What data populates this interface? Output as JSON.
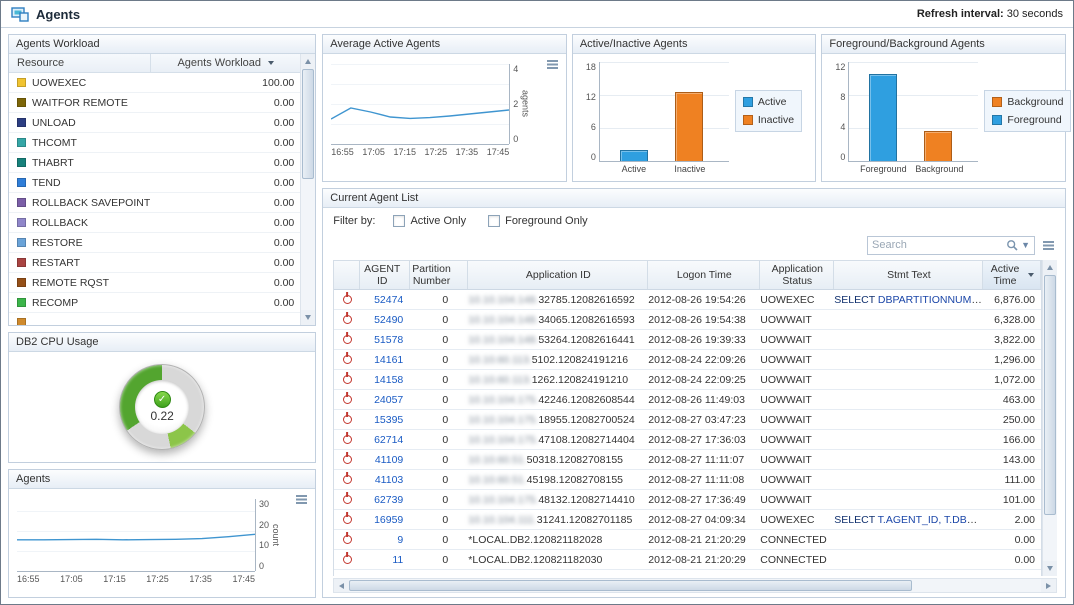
{
  "titlebar": {
    "title": "Agents",
    "refresh_label": "Refresh interval:",
    "refresh_value": "30 seconds"
  },
  "panels": {
    "workload": {
      "title": "Agents Workload",
      "columns": {
        "resource": "Resource",
        "workload": "Agents Workload"
      },
      "rows": [
        {
          "label": "UOWEXEC",
          "color": "#f0c330",
          "value": "100.00",
          "bar_color": "#3d9bd6"
        },
        {
          "label": "WAITFOR REMOTE",
          "color": "#7d6608",
          "value": "0.00",
          "bar_color": "#c4c4c4"
        },
        {
          "label": "UNLOAD",
          "color": "#2c3e82",
          "value": "0.00",
          "bar_color": "#c4c4c4"
        },
        {
          "label": "THCOMT",
          "color": "#35a6a6",
          "value": "0.00",
          "bar_color": "#c4c4c4"
        },
        {
          "label": "THABRT",
          "color": "#17817b",
          "value": "0.00",
          "bar_color": "#c4c4c4"
        },
        {
          "label": "TEND",
          "color": "#2f7ed8",
          "value": "0.00",
          "bar_color": "#c4c4c4"
        },
        {
          "label": "ROLLBACK SAVEPOINT",
          "color": "#7b5ea7",
          "value": "0.00",
          "bar_color": "#c4c4c4"
        },
        {
          "label": "ROLLBACK",
          "color": "#8f86c9",
          "value": "0.00",
          "bar_color": "#c4c4c4"
        },
        {
          "label": "RESTORE",
          "color": "#6aa3d8",
          "value": "0.00",
          "bar_color": "#c4c4c4"
        },
        {
          "label": "RESTART",
          "color": "#a94442",
          "value": "0.00",
          "bar_color": "#c4c4c4"
        },
        {
          "label": "REMOTE RQST",
          "color": "#955018",
          "value": "0.00",
          "bar_color": "#c4c4c4"
        },
        {
          "label": "RECOMP",
          "color": "#3cb54a",
          "value": "0.00",
          "bar_color": "#c4c4c4"
        },
        {
          "label": "",
          "color": "#cf8a2d",
          "value": "",
          "bar_color": "#c4c4c4"
        }
      ]
    },
    "cpu": {
      "title": "DB2 CPU Usage",
      "value": "0.22",
      "status_color": "#4ea72e"
    },
    "agents_trend": {
      "title": "Agents"
    },
    "avg_active": {
      "title": "Average Active Agents"
    },
    "active_inactive": {
      "title": "Active/Inactive Agents"
    },
    "fg_bg": {
      "title": "Foreground/Background Agents"
    },
    "agent_list": {
      "title": "Current Agent List",
      "filter_label": "Filter by:",
      "filters": [
        {
          "label": "Active Only"
        },
        {
          "label": "Foreground Only"
        }
      ],
      "search_placeholder": "Search",
      "columns": [
        "AGENT ID",
        "Partition Number",
        "Application ID",
        "Logon Time",
        "Application Status",
        "Stmt Text",
        "Active Time"
      ],
      "rows": [
        {
          "agent_id": "52474",
          "partition": "0",
          "app_blur": "10.10.104.148.",
          "app_id": "32785.12082616592",
          "logon": "2012-08-26 19:54:26",
          "status": "UOWEXEC",
          "stmt_kw": "SELECT",
          "stmt_rest": " DBPARTITIONNUM, (TOTAL_L…",
          "active_time": "6,876.00"
        },
        {
          "agent_id": "52490",
          "partition": "0",
          "app_blur": "10.10.104.148.",
          "app_id": "34065.12082616593",
          "logon": "2012-08-26 19:54:38",
          "status": "UOWWAIT",
          "stmt_kw": "",
          "stmt_rest": "",
          "active_time": "6,328.00"
        },
        {
          "agent_id": "51578",
          "partition": "0",
          "app_blur": "10.10.104.148.",
          "app_id": "53264.12082616441",
          "logon": "2012-08-26 19:39:33",
          "status": "UOWWAIT",
          "stmt_kw": "",
          "stmt_rest": "",
          "active_time": "3,822.00"
        },
        {
          "agent_id": "14161",
          "partition": "0",
          "app_blur": "10.10.60.113.",
          "app_id": "5102.120824191216",
          "logon": "2012-08-24 22:09:26",
          "status": "UOWWAIT",
          "stmt_kw": "",
          "stmt_rest": "",
          "active_time": "1,296.00"
        },
        {
          "agent_id": "14158",
          "partition": "0",
          "app_blur": "10.10.60.113.",
          "app_id": "1262.120824191210",
          "logon": "2012-08-24 22:09:25",
          "status": "UOWWAIT",
          "stmt_kw": "",
          "stmt_rest": "",
          "active_time": "1,072.00"
        },
        {
          "agent_id": "24057",
          "partition": "0",
          "app_blur": "10.10.104.175.",
          "app_id": "42246.12082608544",
          "logon": "2012-08-26 11:49:03",
          "status": "UOWWAIT",
          "stmt_kw": "",
          "stmt_rest": "",
          "active_time": "463.00"
        },
        {
          "agent_id": "15395",
          "partition": "0",
          "app_blur": "10.10.104.175.",
          "app_id": "18955.12082700524",
          "logon": "2012-08-27 03:47:23",
          "status": "UOWWAIT",
          "stmt_kw": "",
          "stmt_rest": "",
          "active_time": "250.00"
        },
        {
          "agent_id": "62714",
          "partition": "0",
          "app_blur": "10.10.104.175.",
          "app_id": "47108.12082714404",
          "logon": "2012-08-27 17:36:03",
          "status": "UOWWAIT",
          "stmt_kw": "",
          "stmt_rest": "",
          "active_time": "166.00"
        },
        {
          "agent_id": "41109",
          "partition": "0",
          "app_blur": "10.10.60.51.",
          "app_id": "50318.12082708155",
          "logon": "2012-08-27 11:11:07",
          "status": "UOWWAIT",
          "stmt_kw": "",
          "stmt_rest": "",
          "active_time": "143.00"
        },
        {
          "agent_id": "41103",
          "partition": "0",
          "app_blur": "10.10.60.51.",
          "app_id": "45198.12082708155",
          "logon": "2012-08-27 11:11:08",
          "status": "UOWWAIT",
          "stmt_kw": "",
          "stmt_rest": "",
          "active_time": "111.00"
        },
        {
          "agent_id": "62739",
          "partition": "0",
          "app_blur": "10.10.104.175.",
          "app_id": "48132.12082714410",
          "logon": "2012-08-27 17:36:49",
          "status": "UOWWAIT",
          "stmt_kw": "",
          "stmt_rest": "",
          "active_time": "101.00"
        },
        {
          "agent_id": "16959",
          "partition": "0",
          "app_blur": "10.10.104.111.",
          "app_id": "31241.12082701185",
          "logon": "2012-08-27 04:09:34",
          "status": "UOWEXEC",
          "stmt_kw": "SELECT",
          "stmt_rest": " T.AGENT_ID, T.DBPARTITION…",
          "active_time": "2.00"
        },
        {
          "agent_id": "9",
          "partition": "0",
          "app_blur": "",
          "app_id": "*LOCAL.DB2.120821182028",
          "logon": "2012-08-21 21:20:29",
          "status": "CONNECTED",
          "stmt_kw": "",
          "stmt_rest": "",
          "active_time": "0.00"
        },
        {
          "agent_id": "11",
          "partition": "0",
          "app_blur": "",
          "app_id": "*LOCAL.DB2.120821182030",
          "logon": "2012-08-21 21:20:29",
          "status": "CONNECTED",
          "stmt_kw": "",
          "stmt_rest": "",
          "active_time": "0.00"
        }
      ]
    }
  },
  "charts": {
    "avg_active": {
      "type": "line",
      "title": "Average Active Agents",
      "ylabel": "agents",
      "ylim": [
        0,
        4
      ],
      "yticks": [
        "4",
        "2",
        "0"
      ],
      "xticks": [
        "16:55",
        "17:05",
        "17:15",
        "17:25",
        "17:35",
        "17:45"
      ],
      "values": [
        1.25,
        1.8,
        1.6,
        1.35,
        1.28,
        1.32,
        1.4,
        1.5,
        1.6,
        1.7
      ],
      "color": "#3f95d0"
    },
    "agents_count": {
      "type": "line",
      "title": "Agents",
      "ylabel": "count",
      "ylim": [
        0,
        30
      ],
      "yticks": [
        "30",
        "20",
        "10",
        "0"
      ],
      "xticks": [
        "16:55",
        "17:05",
        "17:15",
        "17:25",
        "17:35",
        "17:45"
      ],
      "values": [
        13,
        13,
        13.1,
        13.2,
        13,
        13.1,
        13.2,
        13.5,
        14.3,
        15.3
      ],
      "color": "#3f95d0"
    },
    "active_inactive": {
      "type": "bar",
      "title": "Active/Inactive Agents",
      "ylim": [
        0,
        18
      ],
      "yticks": [
        "18",
        "12",
        "6",
        "0"
      ],
      "categories": [
        "Active",
        "Inactive"
      ],
      "values": [
        2,
        12.5
      ],
      "colors": [
        "#2f9fe0",
        "#ef8122"
      ],
      "legend": [
        {
          "label": "Active",
          "color": "#2f9fe0"
        },
        {
          "label": "Inactive",
          "color": "#ef8122"
        }
      ]
    },
    "fg_bg": {
      "type": "bar",
      "title": "Foreground/Background Agents",
      "ylim": [
        0,
        12
      ],
      "yticks": [
        "12",
        "8",
        "4",
        "0"
      ],
      "categories": [
        "Foreground",
        "Background"
      ],
      "values": [
        10.5,
        3.6
      ],
      "colors": [
        "#2f9fe0",
        "#ef8122"
      ],
      "legend": [
        {
          "label": "Background",
          "color": "#ef8122"
        },
        {
          "label": "Foreground",
          "color": "#2f9fe0"
        }
      ]
    }
  }
}
